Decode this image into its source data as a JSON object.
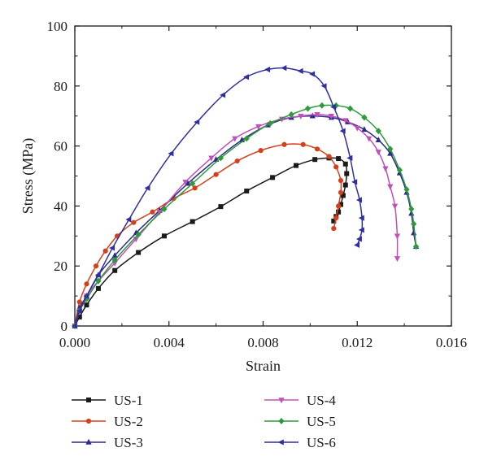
{
  "chart_data": {
    "type": "line",
    "title": "",
    "xlabel": "Strain",
    "ylabel": "Stress (MPa)",
    "xlim": [
      0.0,
      0.016
    ],
    "ylim": [
      0,
      100
    ],
    "xticks": [
      "0.000",
      "0.004",
      "0.008",
      "0.012",
      "0.016"
    ],
    "yticks": [
      "0",
      "20",
      "40",
      "60",
      "80",
      "100"
    ],
    "grid": false,
    "legend_position": "bottom",
    "series": [
      {
        "name": "US-1",
        "color": "#1a1a1a",
        "marker": "square",
        "x": [
          0.0,
          0.0002,
          0.0005,
          0.001,
          0.0017,
          0.0027,
          0.0038,
          0.005,
          0.0062,
          0.0073,
          0.0084,
          0.0094,
          0.0102,
          0.0108,
          0.0112,
          0.0115,
          0.01155,
          0.0115,
          0.0114,
          0.0113,
          0.0112,
          0.0111,
          0.011
        ],
        "y": [
          0,
          3,
          7,
          12.5,
          18.5,
          24.5,
          30,
          34.8,
          39.8,
          45,
          49.5,
          53.5,
          55.5,
          56,
          55.8,
          54,
          50.8,
          47,
          43.5,
          40.5,
          38,
          36.5,
          35
        ]
      },
      {
        "name": "US-2",
        "color": "#d4401c",
        "marker": "circle",
        "x": [
          0.0,
          0.0002,
          0.0005,
          0.0009,
          0.0013,
          0.0018,
          0.0025,
          0.0033,
          0.0042,
          0.0051,
          0.006,
          0.0069,
          0.0079,
          0.0089,
          0.0097,
          0.0103,
          0.0108,
          0.0111,
          0.0113,
          0.0113,
          0.0112,
          0.0111,
          0.011
        ],
        "y": [
          0,
          8,
          14,
          20,
          25,
          30,
          34.5,
          38,
          42.5,
          46,
          50.5,
          55,
          58.5,
          60.5,
          60.5,
          59,
          56.5,
          53,
          48.5,
          44.5,
          40,
          36,
          32.5
        ]
      },
      {
        "name": "US-3",
        "color": "#2d2b8a",
        "marker": "triangle-up",
        "x": [
          0.0,
          0.0002,
          0.0005,
          0.001,
          0.0017,
          0.0026,
          0.0036,
          0.0048,
          0.006,
          0.0071,
          0.0082,
          0.0092,
          0.0101,
          0.0109,
          0.0116,
          0.0123,
          0.0129,
          0.0134,
          0.0138,
          0.0141,
          0.0143,
          0.0144,
          0.0145
        ],
        "y": [
          0,
          6,
          10,
          17,
          23.5,
          31,
          38.5,
          47.5,
          55.5,
          62,
          67,
          69.5,
          70,
          69.5,
          68,
          65.5,
          62,
          57.5,
          51,
          44.5,
          37.5,
          31,
          26.5
        ]
      },
      {
        "name": "US-4",
        "color": "#c050b8",
        "marker": "triangle-down",
        "x": [
          0.0,
          0.0002,
          0.0005,
          0.001,
          0.0017,
          0.0026,
          0.0036,
          0.0047,
          0.0058,
          0.0068,
          0.0078,
          0.0088,
          0.0096,
          0.0103,
          0.0109,
          0.0115,
          0.012,
          0.0125,
          0.0129,
          0.0132,
          0.0134,
          0.0136,
          0.0137,
          0.0137
        ],
        "y": [
          0,
          5,
          10,
          15,
          21,
          29,
          38,
          48,
          56,
          62.5,
          66.5,
          69,
          70,
          70.5,
          70,
          68.5,
          66,
          62.5,
          58,
          52.5,
          46.5,
          40,
          30,
          22.5
        ]
      },
      {
        "name": "US-5",
        "color": "#2f9a3c",
        "marker": "diamond",
        "x": [
          0.0,
          0.0002,
          0.0005,
          0.001,
          0.0017,
          0.0027,
          0.0038,
          0.005,
          0.0062,
          0.0073,
          0.0083,
          0.0092,
          0.0099,
          0.0105,
          0.0111,
          0.0117,
          0.0123,
          0.0129,
          0.0134,
          0.0138,
          0.0141,
          0.0143,
          0.0144,
          0.0145
        ],
        "y": [
          0,
          5,
          9,
          15,
          22,
          30.5,
          39,
          47.5,
          56,
          62.5,
          67.5,
          70.5,
          72.5,
          73.5,
          73.5,
          72.5,
          69.5,
          65,
          59,
          52,
          45.5,
          39,
          34,
          26.5
        ]
      },
      {
        "name": "US-6",
        "color": "#2f2fa0",
        "marker": "triangle-left",
        "x": [
          0.0,
          0.0002,
          0.0005,
          0.001,
          0.0016,
          0.0023,
          0.0031,
          0.0041,
          0.0052,
          0.0063,
          0.0073,
          0.0082,
          0.0089,
          0.0096,
          0.0101,
          0.0106,
          0.011,
          0.0114,
          0.0117,
          0.0119,
          0.0121,
          0.0122,
          0.0122,
          0.0121,
          0.012
        ],
        "y": [
          0,
          5,
          10,
          17,
          26,
          35.5,
          46,
          57.5,
          68,
          77,
          83,
          85.5,
          86,
          85,
          84,
          80,
          73,
          65,
          56,
          48,
          42,
          36,
          32,
          29,
          27
        ]
      }
    ]
  }
}
